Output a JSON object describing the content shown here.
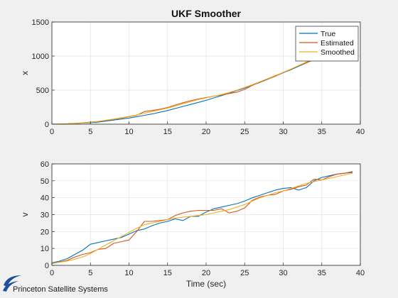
{
  "figure": {
    "background": "#f0f0f0",
    "axes_background": "#ffffff",
    "grid_color": "#e3e3e3",
    "footer": {
      "text": "Princeton Satellite Systems",
      "logo_icon": "swoosh-logo-icon",
      "logo_color": "#1f4f9a"
    }
  },
  "chart_data": [
    {
      "type": "line",
      "title": "UKF Smoother",
      "xlabel": "",
      "ylabel": "x",
      "xlim": [
        0,
        40
      ],
      "ylim": [
        0,
        1500
      ],
      "xticks": [
        0,
        5,
        10,
        15,
        20,
        25,
        30,
        35,
        40
      ],
      "yticks": [
        0,
        500,
        1000,
        1500
      ],
      "grid": true,
      "legend": "top-right",
      "series": [
        {
          "name": "True",
          "color": "#0072bd",
          "x": [
            0,
            1,
            2,
            3,
            4,
            5,
            6,
            7,
            8,
            9,
            10,
            11,
            12,
            13,
            14,
            15,
            16,
            17,
            18,
            19,
            20,
            21,
            22,
            23,
            24,
            25,
            26,
            27,
            28,
            29,
            30,
            31,
            32,
            33,
            34,
            35,
            36,
            37,
            38,
            39
          ],
          "y": [
            0,
            1,
            4,
            9,
            16,
            22,
            30,
            45,
            60,
            75,
            90,
            110,
            130,
            150,
            175,
            200,
            230,
            260,
            290,
            320,
            350,
            385,
            420,
            455,
            495,
            530,
            575,
            615,
            660,
            705,
            755,
            800,
            850,
            900,
            960,
            1010,
            1070,
            1125,
            1180,
            1220
          ]
        },
        {
          "name": "Estimated",
          "color": "#d95319",
          "x": [
            0,
            1,
            2,
            3,
            4,
            5,
            6,
            7,
            8,
            9,
            10,
            11,
            12,
            13,
            14,
            15,
            16,
            17,
            18,
            19,
            20,
            21,
            22,
            23,
            24,
            25,
            26,
            27,
            28,
            29,
            30,
            31,
            32,
            33,
            34,
            35,
            36,
            37,
            38,
            39
          ],
          "y": [
            0,
            2,
            6,
            12,
            20,
            30,
            40,
            55,
            72,
            90,
            110,
            130,
            185,
            200,
            220,
            245,
            280,
            315,
            345,
            370,
            390,
            410,
            430,
            450,
            470,
            510,
            570,
            620,
            665,
            705,
            760,
            805,
            860,
            900,
            950,
            1010,
            1070,
            1125,
            1180,
            1230
          ]
        },
        {
          "name": "Smoothed",
          "color": "#edb120",
          "x": [
            0,
            1,
            2,
            3,
            4,
            5,
            6,
            7,
            8,
            9,
            10,
            11,
            12,
            13,
            14,
            15,
            16,
            17,
            18,
            19,
            20,
            21,
            22,
            23,
            24,
            25,
            26,
            27,
            28,
            29,
            30,
            31,
            32,
            33,
            34,
            35,
            36,
            37,
            38,
            39
          ],
          "y": [
            0,
            2,
            5,
            10,
            18,
            28,
            42,
            58,
            75,
            95,
            115,
            135,
            160,
            185,
            210,
            235,
            265,
            300,
            330,
            360,
            385,
            410,
            435,
            465,
            500,
            540,
            580,
            625,
            670,
            715,
            760,
            810,
            860,
            915,
            965,
            1020,
            1075,
            1130,
            1185,
            1230
          ]
        }
      ]
    },
    {
      "type": "line",
      "title": "",
      "xlabel": "Time (sec)",
      "ylabel": "v",
      "xlim": [
        0,
        40
      ],
      "ylim": [
        0,
        60
      ],
      "xticks": [
        0,
        5,
        10,
        15,
        20,
        25,
        30,
        35,
        40
      ],
      "yticks": [
        0,
        10,
        20,
        30,
        40,
        50,
        60
      ],
      "grid": true,
      "series": [
        {
          "name": "True",
          "color": "#0072bd",
          "x": [
            0,
            1,
            2,
            3,
            4,
            5,
            6,
            7,
            8,
            9,
            10,
            11,
            12,
            13,
            14,
            15,
            16,
            17,
            18,
            19,
            20,
            21,
            22,
            23,
            24,
            25,
            26,
            27,
            28,
            29,
            30,
            31,
            32,
            33,
            34,
            35,
            36,
            37,
            38,
            39
          ],
          "y": [
            1.5,
            2.5,
            4,
            6.5,
            9,
            12.5,
            13.5,
            14.5,
            15.5,
            16.5,
            18.5,
            20.5,
            21.5,
            23.5,
            25,
            26,
            27.5,
            26.5,
            29,
            29,
            31.5,
            33.5,
            34.5,
            35.5,
            36.5,
            38,
            40,
            41.5,
            43,
            44.5,
            45.5,
            46,
            44.5,
            46,
            50,
            52,
            53,
            54,
            54.5,
            55
          ]
        },
        {
          "name": "Estimated",
          "color": "#d95319",
          "x": [
            0,
            1,
            2,
            3,
            4,
            5,
            6,
            7,
            8,
            9,
            10,
            11,
            12,
            13,
            14,
            15,
            16,
            17,
            18,
            19,
            20,
            21,
            22,
            23,
            24,
            25,
            26,
            27,
            28,
            29,
            30,
            31,
            32,
            33,
            34,
            35,
            36,
            37,
            38,
            39
          ],
          "y": [
            1,
            2,
            3,
            5,
            6.5,
            7.5,
            9.5,
            10,
            13,
            14,
            15,
            20,
            26,
            26,
            26.5,
            27,
            29.5,
            31,
            32,
            32.5,
            32.5,
            32.5,
            33.5,
            31,
            32,
            34,
            38.5,
            40.5,
            41.5,
            42,
            44,
            45,
            46.5,
            47.5,
            51,
            50.5,
            52.5,
            54,
            54.5,
            55.5
          ]
        },
        {
          "name": "Smoothed",
          "color": "#edb120",
          "x": [
            0,
            1,
            2,
            3,
            4,
            5,
            6,
            7,
            8,
            9,
            10,
            11,
            12,
            13,
            14,
            15,
            16,
            17,
            18,
            19,
            20,
            21,
            22,
            23,
            24,
            25,
            26,
            27,
            28,
            29,
            30,
            31,
            32,
            33,
            34,
            35,
            36,
            37,
            38,
            39
          ],
          "y": [
            1,
            1.8,
            2.6,
            3.6,
            5,
            7,
            9.5,
            12,
            14.5,
            17,
            19.5,
            22,
            24,
            25,
            26,
            27,
            28,
            28.5,
            29,
            29.5,
            30,
            31,
            32,
            33,
            34.5,
            36,
            38,
            40,
            41.5,
            43,
            44,
            45.5,
            47,
            48.5,
            49.5,
            50.5,
            51.5,
            52.5,
            53.5,
            54.5
          ]
        }
      ]
    }
  ]
}
